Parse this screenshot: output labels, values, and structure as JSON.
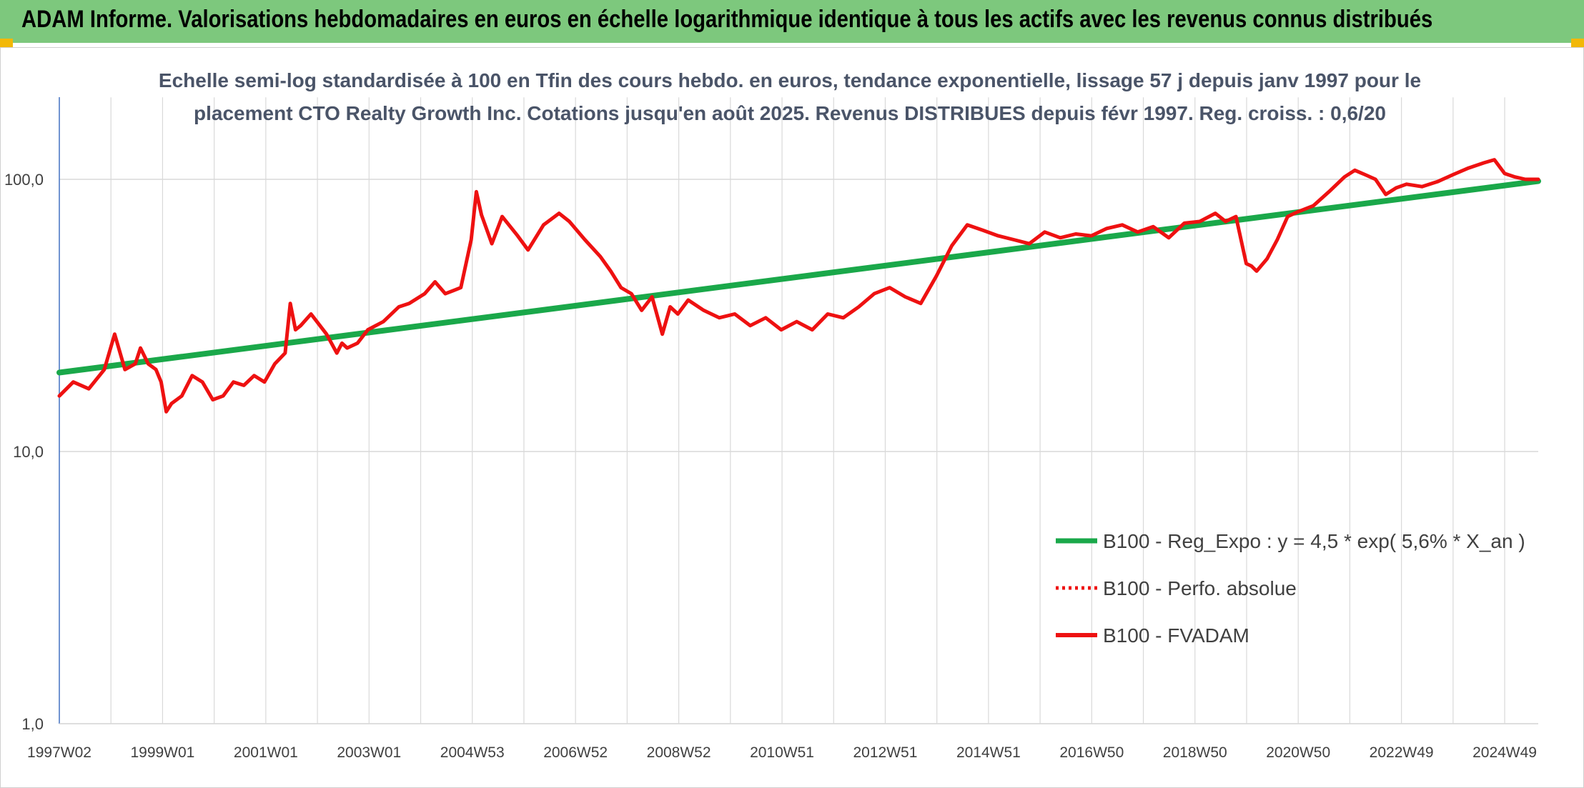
{
  "header": {
    "title": "ADAM Informe. Valorisations hebdomadaires en euros en échelle logarithmique identique à tous les actifs avec les revenus connus distribués"
  },
  "colors": {
    "banner": "#7dc87d",
    "trend": "#1aa84a",
    "price": "#ee1111",
    "perf": "#ee1111",
    "grid": "#d9d9d9",
    "axis": "#4472c4"
  },
  "chart_data": {
    "type": "line",
    "title_lines": [
      "Echelle semi-log standardisée à 100 en Tfin des cours hebdo. en euros, tendance exponentielle, lissage 57 j depuis janv 1997 pour le",
      "placement CTO Realty Growth Inc. Cotations jusqu'en août 2025. Revenus DISTRIBUES depuis févr 1997. Reg. croiss. : 0,6/20"
    ],
    "y_scale": "log",
    "ylim": [
      1,
      200
    ],
    "y_ticks": [
      "1,0",
      "10,0",
      "100,0"
    ],
    "x_range": [
      1997.03,
      2025.65
    ],
    "x_ticks": [
      "1997W02",
      "1999W01",
      "2001W01",
      "2003W01",
      "2004W53",
      "2006W52",
      "2008W52",
      "2010W51",
      "2012W51",
      "2014W51",
      "2016W50",
      "2018W50",
      "2020W50",
      "2022W49",
      "2024W49"
    ],
    "grid": true,
    "legend_position": "bottom-right",
    "legend": [
      "B100 - Reg_Expo : y = 4,5 * exp( 5,6% *  X_an )",
      "B100 - Perfo. absolue",
      "B100 - FVADAM"
    ],
    "series": [
      {
        "name": "B100 - Reg_Expo : y = 4,5 * exp( 5,6% *  X_an )",
        "style": "solid-thick",
        "x": [
          1997.03,
          2025.65
        ],
        "y": [
          19.5,
          98.5
        ]
      },
      {
        "name": "B100 - FVADAM",
        "style": "solid",
        "x": [
          1997.03,
          1997.3,
          1997.6,
          1997.9,
          1998.1,
          1998.3,
          1998.5,
          1998.6,
          1998.75,
          1998.9,
          1999.0,
          1999.1,
          1999.2,
          1999.4,
          1999.6,
          1999.8,
          2000.0,
          2000.2,
          2000.4,
          2000.6,
          2000.8,
          2001.0,
          2001.2,
          2001.4,
          2001.5,
          2001.6,
          2001.7,
          2001.9,
          2002.2,
          2002.4,
          2002.5,
          2002.6,
          2002.8,
          2003.0,
          2003.3,
          2003.6,
          2003.8,
          2004.1,
          2004.3,
          2004.5,
          2004.8,
          2005.0,
          2005.1,
          2005.2,
          2005.4,
          2005.6,
          2005.9,
          2006.1,
          2006.4,
          2006.7,
          2006.9,
          2007.2,
          2007.5,
          2007.7,
          2007.9,
          2008.1,
          2008.3,
          2008.5,
          2008.7,
          2008.85,
          2009.0,
          2009.2,
          2009.5,
          2009.8,
          2010.1,
          2010.4,
          2010.7,
          2011.0,
          2011.3,
          2011.6,
          2011.9,
          2012.2,
          2012.5,
          2012.8,
          2013.1,
          2013.4,
          2013.7,
          2014.0,
          2014.3,
          2014.6,
          2014.9,
          2015.2,
          2015.5,
          2015.8,
          2016.1,
          2016.4,
          2016.7,
          2017.0,
          2017.3,
          2017.6,
          2017.9,
          2018.2,
          2018.5,
          2018.8,
          2019.1,
          2019.4,
          2019.6,
          2019.8,
          2020.0,
          2020.1,
          2020.2,
          2020.4,
          2020.6,
          2020.8,
          2021.0,
          2021.3,
          2021.6,
          2021.9,
          2022.1,
          2022.3,
          2022.5,
          2022.7,
          2022.9,
          2023.1,
          2023.4,
          2023.7,
          2024.0,
          2024.3,
          2024.6,
          2024.8,
          2025.0,
          2025.2,
          2025.4,
          2025.65
        ],
        "y": [
          16,
          18,
          17,
          20,
          27,
          20,
          21,
          24,
          21,
          20,
          18,
          14,
          15,
          16,
          19,
          18,
          15.5,
          16,
          18,
          17.5,
          19,
          18,
          21,
          23,
          35,
          28,
          29,
          32,
          27,
          23,
          25,
          24,
          25,
          28,
          30,
          34,
          35,
          38,
          42,
          38,
          40,
          60,
          90,
          74,
          58,
          73,
          62,
          55,
          68,
          75,
          70,
          60,
          52,
          46,
          40,
          38,
          33,
          37,
          27,
          34,
          32,
          36,
          33,
          31,
          32,
          29,
          31,
          28,
          30,
          28,
          32,
          31,
          34,
          38,
          40,
          37,
          35,
          44,
          57,
          68,
          65,
          62,
          60,
          58,
          64,
          61,
          63,
          62,
          66,
          68,
          64,
          67,
          61,
          69,
          70,
          75,
          70,
          73,
          49,
          48,
          46,
          51,
          60,
          73,
          76,
          80,
          90,
          102,
          108,
          104,
          100,
          88,
          93,
          96,
          94,
          98,
          104,
          110,
          115,
          118,
          105,
          102,
          100,
          100
        ]
      }
    ]
  }
}
